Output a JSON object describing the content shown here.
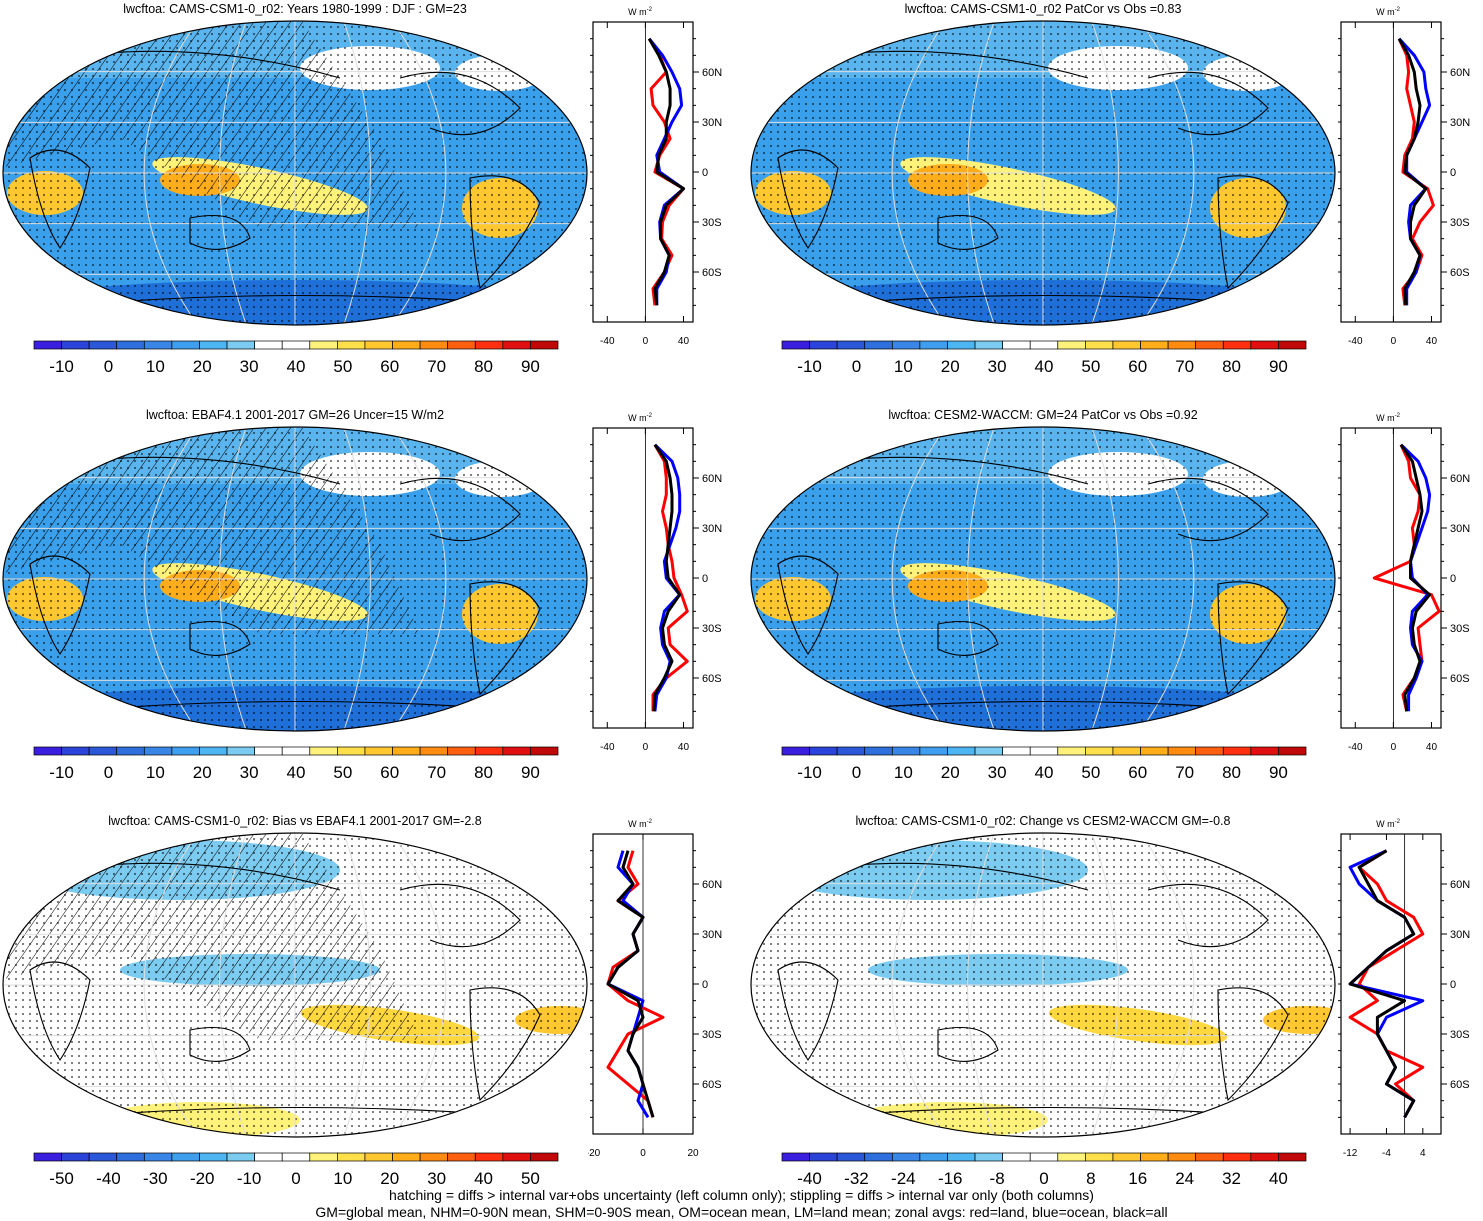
{
  "footer": {
    "line1": "hatching = diffs > internal var+obs uncertainty (left column only); stippling = diffs > internal var only (both columns)",
    "line2": "GM=global mean, NHM=0-90N mean, SHM=0-90S mean, OM=ocean mean, LM=land mean; zonal avgs: red=land, blue=ocean, black=all"
  },
  "colors": {
    "land": "#ff0000",
    "ocean": "#0000ff",
    "all": "#000000",
    "palette": [
      "#3a1fe0",
      "#2a43d8",
      "#2b58d9",
      "#2f6fdd",
      "#3a86e6",
      "#3f9fee",
      "#4db6f2",
      "#7ccbf0",
      "#ffffff",
      "#ffffff",
      "#fff27a",
      "#ffe04a",
      "#ffc830",
      "#ffad1a",
      "#ff8c10",
      "#ff6010",
      "#ff3010",
      "#e01010",
      "#c00808"
    ]
  },
  "panels": [
    {
      "title": "lwcftoa: CAMS-CSM1-0_r02: Years 1980-1999 : DJF : GM=23",
      "zonal_unit": "W m",
      "zonal_unit_sup": "-2",
      "zonal_xticks": [
        "-40",
        "0",
        "40"
      ],
      "lat_labels": [
        "60N",
        "30N",
        "0",
        "30S",
        "60S"
      ],
      "colorbar_labels": [
        "-10",
        "0",
        "10",
        "20",
        "30",
        "40",
        "50",
        "60",
        "70",
        "80",
        "90"
      ],
      "chart_data": {
        "type": "line",
        "title": "lwcftoa: CAMS-CSM1-0_r02: Years 1980-1999 : DJF : GM=23",
        "x_range": [
          -55,
          50
        ],
        "latitude": [
          80,
          70,
          60,
          50,
          40,
          30,
          20,
          10,
          0,
          -10,
          -20,
          -30,
          -40,
          -50,
          -60,
          -70,
          -80
        ],
        "series": [
          {
            "name": "land",
            "color": "red",
            "values": [
              4,
              15,
              22,
              6,
              8,
              20,
              26,
              15,
              10,
              40,
              25,
              18,
              17,
              28,
              20,
              8,
              10
            ]
          },
          {
            "name": "ocean",
            "color": "blue",
            "values": [
              4,
              18,
              28,
              36,
              38,
              28,
              20,
              12,
              15,
              40,
              20,
              15,
              16,
              25,
              22,
              12,
              12
            ]
          },
          {
            "name": "all",
            "color": "black",
            "values": [
              4,
              14,
              22,
              26,
              26,
              22,
              22,
              14,
              12,
              40,
              22,
              16,
              16,
              25,
              20,
              10,
              12
            ]
          }
        ]
      }
    },
    {
      "title": "lwcftoa: CAMS-CSM1-0_r02 PatCor vs Obs =0.83",
      "zonal_unit": "W m",
      "zonal_unit_sup": "-2",
      "zonal_xticks": [
        "-40",
        "0",
        "40"
      ],
      "lat_labels": [
        "60N",
        "30N",
        "0",
        "30S",
        "60S"
      ],
      "colorbar_labels": [
        "-10",
        "0",
        "10",
        "20",
        "30",
        "40",
        "50",
        "60",
        "70",
        "80",
        "90"
      ],
      "chart_data": {
        "type": "line",
        "title": "lwcftoa: CAMS-CSM1-0_r02 PatCor vs Obs =0.83",
        "x_range": [
          -55,
          50
        ],
        "latitude": [
          80,
          70,
          60,
          50,
          40,
          30,
          20,
          10,
          0,
          -10,
          -20,
          -30,
          -40,
          -50,
          -60,
          -70,
          -80
        ],
        "series": [
          {
            "name": "land",
            "color": "red",
            "values": [
              6,
              14,
              16,
              14,
              18,
              22,
              20,
              12,
              10,
              36,
              42,
              28,
              20,
              30,
              24,
              10,
              12
            ]
          },
          {
            "name": "ocean",
            "color": "blue",
            "values": [
              6,
              22,
              32,
              34,
              38,
              30,
              22,
              14,
              14,
              34,
              18,
              16,
              18,
              28,
              24,
              14,
              14
            ]
          },
          {
            "name": "all",
            "color": "black",
            "values": [
              6,
              16,
              22,
              24,
              28,
              26,
              22,
              14,
              12,
              34,
              22,
              18,
              18,
              28,
              22,
              12,
              13
            ]
          }
        ]
      }
    },
    {
      "title": "lwcftoa: EBAF4.1 2001-2017 GM=26 Uncer=15 W/m2",
      "zonal_unit": "W m",
      "zonal_unit_sup": "-2",
      "zonal_xticks": [
        "-40",
        "0",
        "40"
      ],
      "lat_labels": [
        "60N",
        "30N",
        "0",
        "30S",
        "60S"
      ],
      "colorbar_labels": [
        "-10",
        "0",
        "10",
        "20",
        "30",
        "40",
        "50",
        "60",
        "70",
        "80",
        "90"
      ],
      "chart_data": {
        "type": "line",
        "title": "lwcftoa: EBAF4.1 2001-2017 GM=26 Uncer=15 W/m2",
        "x_range": [
          -55,
          50
        ],
        "latitude": [
          80,
          70,
          60,
          50,
          40,
          30,
          20,
          10,
          0,
          -10,
          -20,
          -30,
          -40,
          -50,
          -60,
          -70,
          -80
        ],
        "series": [
          {
            "name": "land",
            "color": "red",
            "values": [
              10,
              20,
              22,
              22,
              18,
              22,
              24,
              28,
              30,
              38,
              44,
              24,
              26,
              44,
              22,
              8,
              8
            ]
          },
          {
            "name": "ocean",
            "color": "blue",
            "values": [
              10,
              28,
              34,
              36,
              36,
              32,
              26,
              20,
              22,
              36,
              20,
              16,
              18,
              26,
              22,
              12,
              10
            ]
          },
          {
            "name": "all",
            "color": "black",
            "values": [
              10,
              22,
              26,
              28,
              28,
              26,
              24,
              22,
              24,
              36,
              24,
              18,
              20,
              28,
              20,
              10,
              9
            ]
          }
        ]
      }
    },
    {
      "title": "lwcftoa: CESM2-WACCM: GM=24 PatCor vs Obs =0.92",
      "zonal_unit": "W m",
      "zonal_unit_sup": "-2",
      "zonal_xticks": [
        "-40",
        "0",
        "40"
      ],
      "lat_labels": [
        "60N",
        "30N",
        "0",
        "30S",
        "60S"
      ],
      "colorbar_labels": [
        "-10",
        "0",
        "10",
        "20",
        "30",
        "40",
        "50",
        "60",
        "70",
        "80",
        "90"
      ],
      "chart_data": {
        "type": "line",
        "title": "lwcftoa: CESM2-WACCM: GM=24 PatCor vs Obs =0.92",
        "x_range": [
          -55,
          50
        ],
        "latitude": [
          80,
          70,
          60,
          50,
          40,
          30,
          20,
          10,
          0,
          -10,
          -20,
          -30,
          -40,
          -50,
          -60,
          -70,
          -80
        ],
        "series": [
          {
            "name": "land",
            "color": "red",
            "values": [
              8,
              16,
              18,
              28,
              26,
              20,
              22,
              18,
              -20,
              40,
              48,
              26,
              28,
              30,
              22,
              10,
              14
            ]
          },
          {
            "name": "ocean",
            "color": "blue",
            "values": [
              8,
              26,
              34,
              38,
              36,
              30,
              24,
              18,
              20,
              36,
              20,
              18,
              20,
              30,
              24,
              16,
              16
            ]
          },
          {
            "name": "all",
            "color": "black",
            "values": [
              8,
              20,
              24,
              28,
              30,
              26,
              22,
              18,
              18,
              38,
              24,
              20,
              22,
              28,
              22,
              12,
              14
            ]
          }
        ]
      }
    },
    {
      "title": "lwcftoa: CAMS-CSM1-0_r02: Bias vs EBAF4.1 2001-2017 GM=-2.8",
      "zonal_unit": "W m",
      "zonal_unit_sup": "-2",
      "zonal_xticks": [
        "-20",
        "0",
        "20"
      ],
      "lat_labels": [
        "60N",
        "30N",
        "0",
        "30S",
        "60S"
      ],
      "colorbar_labels": [
        "-50",
        "-40",
        "-30",
        "-20",
        "-10",
        "0",
        "10",
        "20",
        "30",
        "40",
        "50"
      ],
      "chart_data": {
        "type": "line",
        "title": "lwcftoa: CAMS-CSM1-0_r02: Bias vs EBAF4.1 2001-2017 GM=-2.8",
        "x_range": [
          -20,
          20
        ],
        "latitude": [
          80,
          70,
          60,
          50,
          40,
          30,
          20,
          10,
          0,
          -10,
          -20,
          -30,
          -40,
          -50,
          -60,
          -70,
          -80
        ],
        "series": [
          {
            "name": "land",
            "color": "red",
            "values": [
              -4,
              -6,
              -2,
              -10,
              0,
              -4,
              -2,
              -12,
              -14,
              -6,
              8,
              -6,
              -10,
              -14,
              -6,
              2,
              4
            ]
          },
          {
            "name": "ocean",
            "color": "blue",
            "values": [
              -8,
              -10,
              -4,
              -8,
              0,
              -4,
              -2,
              -10,
              -14,
              0,
              -2,
              -4,
              -6,
              -2,
              0,
              -2,
              2
            ]
          },
          {
            "name": "all",
            "color": "black",
            "values": [
              -6,
              -8,
              -4,
              -10,
              0,
              -4,
              -2,
              -10,
              -14,
              -2,
              0,
              -4,
              -6,
              -2,
              0,
              2,
              4
            ]
          }
        ]
      }
    },
    {
      "title": "lwcftoa: CAMS-CSM1-0_r02: Change vs CESM2-WACCM GM=-0.8",
      "zonal_unit": "W m",
      "zonal_unit_sup": "-2",
      "zonal_xticks": [
        "-12",
        "-4",
        "4"
      ],
      "lat_labels": [
        "60N",
        "30N",
        "0",
        "30S",
        "60S"
      ],
      "colorbar_labels": [
        "-40",
        "-32",
        "-24",
        "-16",
        "-8",
        "0",
        "8",
        "16",
        "24",
        "32",
        "40"
      ],
      "chart_data": {
        "type": "line",
        "title": "lwcftoa: CAMS-CSM1-0_r02: Change vs CESM2-WACCM GM=-0.8",
        "x_range": [
          -14,
          8
        ],
        "latitude": [
          80,
          70,
          60,
          50,
          40,
          30,
          20,
          10,
          0,
          -10,
          -20,
          -30,
          -40,
          -50,
          -60,
          -70,
          -80
        ],
        "series": [
          {
            "name": "land",
            "color": "red",
            "values": [
              -4,
              -10,
              -6,
              -4,
              2,
              4,
              -2,
              -8,
              -10,
              -6,
              -12,
              -6,
              -4,
              4,
              -2,
              2,
              0
            ]
          },
          {
            "name": "ocean",
            "color": "blue",
            "values": [
              -4,
              -12,
              -10,
              -6,
              0,
              2,
              -4,
              -8,
              -12,
              4,
              -4,
              -6,
              -4,
              -2,
              -4,
              2,
              0
            ]
          },
          {
            "name": "all",
            "color": "black",
            "values": [
              -4,
              -10,
              -8,
              -6,
              0,
              2,
              -4,
              -8,
              -12,
              0,
              -6,
              -6,
              -4,
              -2,
              -4,
              2,
              0
            ]
          }
        ]
      }
    }
  ]
}
